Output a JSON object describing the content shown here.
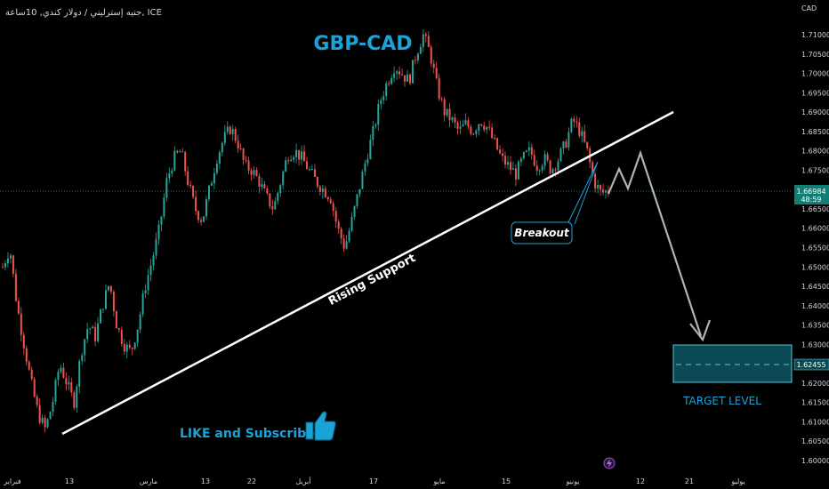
{
  "header": {
    "symbol_line": "جنيه إسترليني / دولار كندي, 10ساعة, ICE"
  },
  "currency_label": "CAD",
  "chart_data": {
    "type": "candlestick",
    "title": "GBP-CAD",
    "ylim": [
      1.5965,
      1.718
    ],
    "y_ticks": [
      "1.71000",
      "1.70500",
      "1.70000",
      "1.69500",
      "1.69000",
      "1.68500",
      "1.68000",
      "1.67500",
      "1.67000",
      "1.66500",
      "1.66000",
      "1.65500",
      "1.65000",
      "1.64500",
      "1.64000",
      "1.63500",
      "1.63000",
      "1.62500",
      "1.62000",
      "1.61500",
      "1.61000",
      "1.60500",
      "1.60000"
    ],
    "x_ticks": [
      "فبراير",
      "13",
      "مارس",
      "13",
      "22",
      "أبريل",
      "17",
      "مايو",
      "15",
      "يونيو",
      "12",
      "21",
      "يوليو"
    ],
    "last_price": "1.66984",
    "countdown": "48:59",
    "target_price": "1.62455",
    "target_zone": [
      1.62,
      1.63
    ],
    "trendline": {
      "label": "Rising Support",
      "from": [
        "13 فبراير",
        1.607
      ],
      "to": [
        "15 يونيو",
        1.6895
      ]
    },
    "projection": [
      1.6728,
      1.678,
      1.671,
      1.68,
      1.631
    ],
    "annotations": {
      "breakout": "Breakout",
      "target": "TARGET LEVEL",
      "promo": "LIKE and Subscribe"
    },
    "price_path": [
      1.65,
      1.655,
      1.64,
      1.63,
      1.62,
      1.612,
      1.608,
      1.615,
      1.625,
      1.62,
      1.615,
      1.628,
      1.635,
      1.632,
      1.64,
      1.646,
      1.635,
      1.63,
      1.628,
      1.635,
      1.645,
      1.652,
      1.66,
      1.672,
      1.678,
      1.68,
      1.672,
      1.665,
      1.662,
      1.67,
      1.678,
      1.683,
      1.686,
      1.682,
      1.676,
      1.675,
      1.672,
      1.668,
      1.665,
      1.672,
      1.679,
      1.68,
      1.678,
      1.675,
      1.672,
      1.67,
      1.668,
      1.66,
      1.655,
      1.662,
      1.67,
      1.678,
      1.685,
      1.693,
      1.698,
      1.702,
      1.7,
      1.698,
      1.705,
      1.71,
      1.705,
      1.696,
      1.69,
      1.688,
      1.685,
      1.687,
      1.685,
      1.688,
      1.686,
      1.682,
      1.678,
      1.676,
      1.674,
      1.678,
      1.68,
      1.676,
      1.678,
      1.675,
      1.678,
      1.682,
      1.688,
      1.685,
      1.68,
      1.672,
      1.669,
      1.6698
    ]
  }
}
